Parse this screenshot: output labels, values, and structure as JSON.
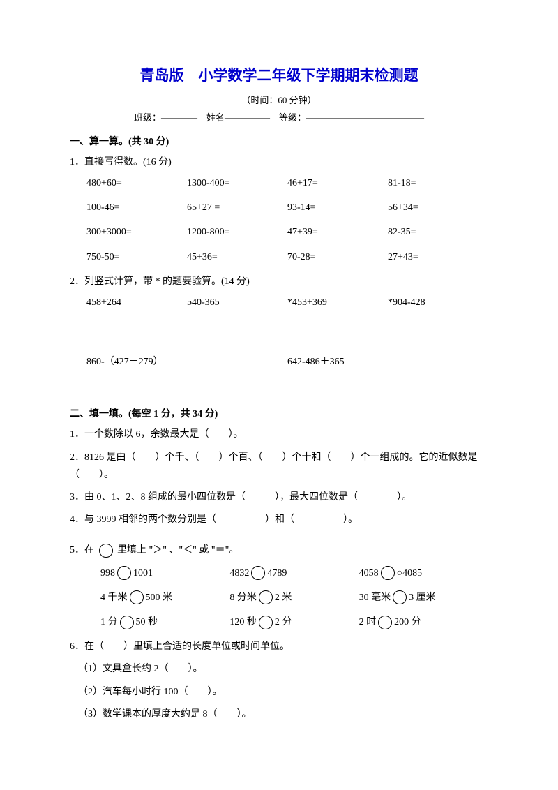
{
  "title": "青岛版　小学数学二年级下学期期末检测题",
  "subtitle": "（时间：60 分钟）",
  "infoLine": "班级：————　姓名—————　等级：—————————————",
  "section1": {
    "header": "一、算一算。(共 30 分)",
    "q1": "1．直接写得数。(16 分)",
    "rows": [
      [
        "480+60=",
        "1300-400=",
        "46+17=",
        "81-18="
      ],
      [
        "100-46=",
        "65+27 =",
        "93-14=",
        "56+34="
      ],
      [
        "300+3000=",
        "1200-800=",
        "47+39=",
        "82-35="
      ],
      [
        "750-50=",
        "45+36=",
        "70-28=",
        "27+43="
      ]
    ],
    "q2": "2．列竖式计算，带 * 的题要验算。(14 分)",
    "row2": [
      "458+264",
      "540-365",
      "*453+369",
      "*904-428"
    ],
    "row3": [
      "860-（427－279）",
      "642-486＋365"
    ]
  },
  "section2": {
    "header": "二、填一填。(每空 1 分，共 34 分)",
    "q1": "1．一个数除以 6，余数最大是（　　）。",
    "q2": "2．8126 是由（　　）个千、（　　）个百、（　　）个十和（　　）个一组成的。它的近似数是（　　）。",
    "q3": "3．由 0、1、2、8 组成的最小四位数是（　　　），最大四位数是（　　　　）。",
    "q4": "4．与 3999 相邻的两个数分别是（　　　　　）和（　　　　　）。",
    "q5": "5．在 ○ 里填上 \"＞\" 、\"＜\" 或 \"＝\"。",
    "compareRows": [
      [
        {
          "l": "998",
          "r": "1001"
        },
        {
          "l": "4832",
          "r": "4789"
        },
        {
          "l": "4058",
          "r": "○4085"
        }
      ],
      [
        {
          "l": "4 千米",
          "r": "500 米"
        },
        {
          "l": "8 分米",
          "r": "2 米"
        },
        {
          "l": "30 毫米",
          "r": "3 厘米"
        }
      ],
      [
        {
          "l": "1 分",
          "r": "50 秒"
        },
        {
          "l": "120 秒",
          "r": "2 分"
        },
        {
          "l": "2 时",
          "r": "200 分"
        }
      ]
    ],
    "q6": "6．在（　　）里填上合适的长度单位或时间单位。",
    "q6_1": "（1）文具盒长约 2（　　）。",
    "q6_2": "（2）汽车每小时行 100（　　）。",
    "q6_3": "（3）数学课本的厚度大约是 8（　　）。"
  }
}
